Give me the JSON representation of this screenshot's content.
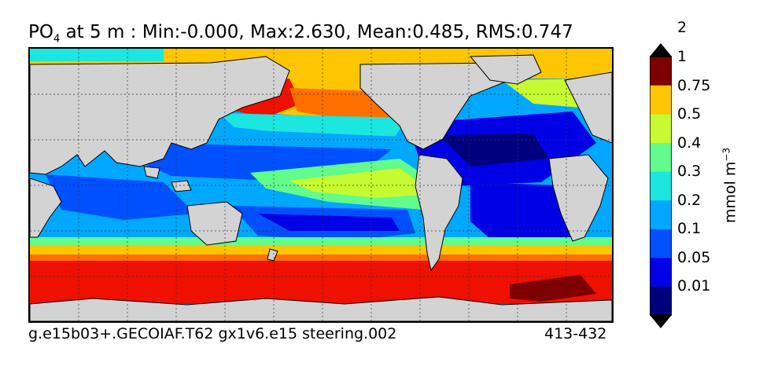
{
  "title": {
    "variable_main": "PO",
    "variable_sub": "4",
    "rest": " at 5 m : Min:-0.000, Max:2.630, Mean:0.485, RMS:0.747"
  },
  "footer": {
    "case_name": "g.e15b03+.GECOIAF.T62 gx1v6.e15 steering.002",
    "years": "413-432"
  },
  "colorbar": {
    "units": "mmol m",
    "units_superscript": "−3",
    "levels": [
      "0.01",
      "0.05",
      "0.1",
      "0.2",
      "0.3",
      "0.4",
      "0.5",
      "0.75",
      "1",
      "2"
    ],
    "colors": [
      "#00007f",
      "#0000e6",
      "#0050ff",
      "#00a8ff",
      "#1be6e0",
      "#62fb8c",
      "#c5fb30",
      "#fdc600",
      "#ff6f00",
      "#ef1000",
      "#7f0000"
    ]
  },
  "map": {
    "land_color": "#d3d3d3",
    "grid": "dashed"
  }
}
